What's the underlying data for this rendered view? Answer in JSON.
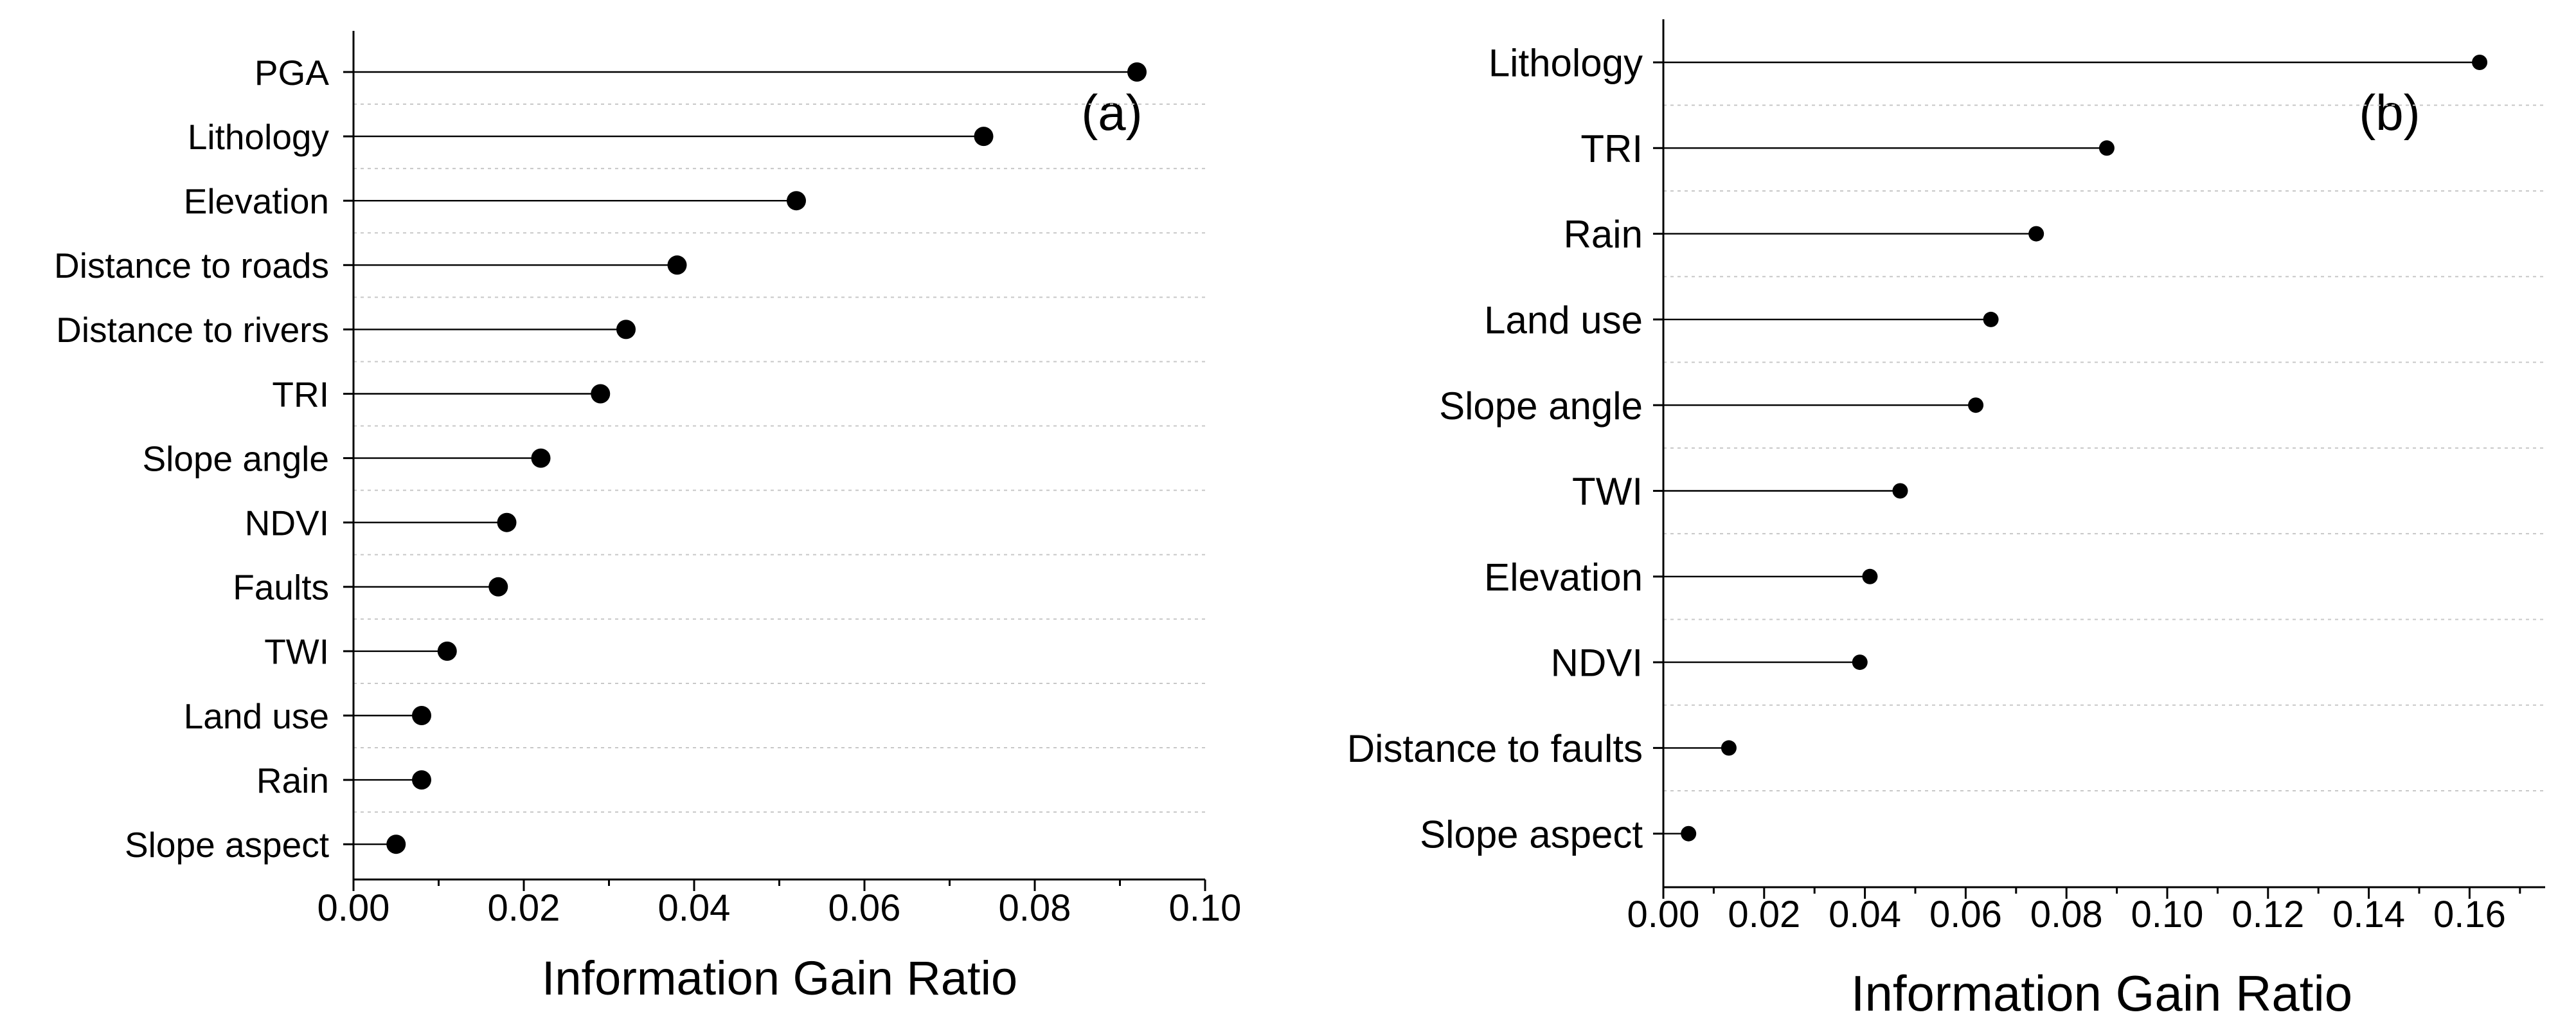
{
  "colors": {
    "axis": "#000000",
    "stem": "#000000",
    "marker": "#000000",
    "grid": "#c8c8c8",
    "background": "#ffffff"
  },
  "chart_data": [
    {
      "type": "lollipop",
      "panel_label": "(a)",
      "title": "",
      "xlabel": "Information Gain Ratio",
      "ylabel": "",
      "xlim": [
        0,
        0.1
      ],
      "xticks": [
        "0.00",
        "0.02",
        "0.04",
        "0.06",
        "0.08",
        "0.10"
      ],
      "categories": [
        "PGA",
        "Lithology",
        "Elevation",
        "Distance to roads",
        "Distance to rivers",
        "TRI",
        "Slope angle",
        "NDVI",
        "Faults",
        "TWI",
        "Land use",
        "Rain",
        "Slope aspect"
      ],
      "values": [
        0.092,
        0.074,
        0.052,
        0.038,
        0.032,
        0.029,
        0.022,
        0.018,
        0.017,
        0.011,
        0.008,
        0.008,
        0.005
      ],
      "grid": "horizontal dotted"
    },
    {
      "type": "lollipop",
      "panel_label": "(b)",
      "title": "",
      "xlabel": "Information Gain Ratio",
      "ylabel": "",
      "xlim": [
        0,
        0.175
      ],
      "xticks": [
        "0.00",
        "0.02",
        "0.04",
        "0.06",
        "0.08",
        "0.10",
        "0.12",
        "0.14",
        "0.16"
      ],
      "categories": [
        "Lithology",
        "TRI",
        "Rain",
        "Land use",
        "Slope angle",
        "TWI",
        "Elevation",
        "NDVI",
        "Distance to faults",
        "Slope aspect"
      ],
      "values": [
        0.162,
        0.088,
        0.074,
        0.065,
        0.062,
        0.047,
        0.041,
        0.039,
        0.013,
        0.005
      ],
      "grid": "horizontal dotted"
    }
  ]
}
